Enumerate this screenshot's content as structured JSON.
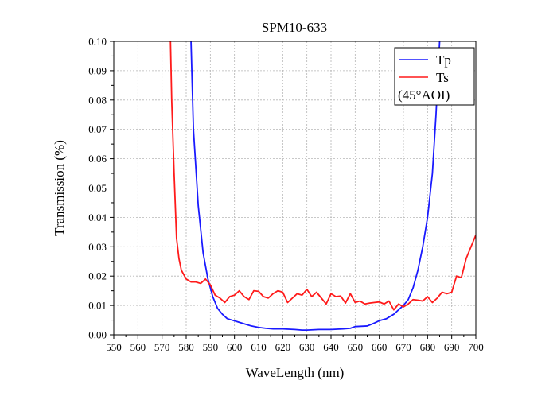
{
  "chart_data": {
    "type": "line",
    "title": "SPM10-633",
    "xlabel": "WaveLength (nm)",
    "ylabel": "Transmission (%)",
    "xlim": [
      550,
      700
    ],
    "ylim": [
      0,
      0.1
    ],
    "x_ticks": [
      550,
      560,
      570,
      580,
      590,
      600,
      610,
      620,
      630,
      640,
      650,
      660,
      670,
      680,
      690,
      700
    ],
    "y_ticks": [
      0.0,
      0.01,
      0.02,
      0.03,
      0.04,
      0.05,
      0.06,
      0.07,
      0.08,
      0.09,
      0.1
    ],
    "x_tick_labels": [
      "550",
      "560",
      "570",
      "580",
      "590",
      "600",
      "610",
      "620",
      "630",
      "640",
      "650",
      "660",
      "670",
      "680",
      "690",
      "700"
    ],
    "y_tick_labels": [
      "0.00",
      "0.01",
      "0.02",
      "0.03",
      "0.04",
      "0.05",
      "0.06",
      "0.07",
      "0.08",
      "0.09",
      "0.10"
    ],
    "grid": true,
    "legend_position": "top-right",
    "legend_note": "(45°AOI)",
    "series": [
      {
        "name": "Tp",
        "color": "#1a1aff",
        "points": [
          [
            582,
            0.1
          ],
          [
            583,
            0.07
          ],
          [
            585,
            0.044
          ],
          [
            587,
            0.028
          ],
          [
            589,
            0.019
          ],
          [
            591,
            0.013
          ],
          [
            593,
            0.009
          ],
          [
            595,
            0.007
          ],
          [
            597,
            0.0055
          ],
          [
            599,
            0.005
          ],
          [
            601,
            0.0045
          ],
          [
            603,
            0.004
          ],
          [
            605,
            0.0035
          ],
          [
            607,
            0.003
          ],
          [
            610,
            0.0025
          ],
          [
            613,
            0.0022
          ],
          [
            616,
            0.002
          ],
          [
            620,
            0.002
          ],
          [
            625,
            0.0018
          ],
          [
            628,
            0.0016
          ],
          [
            630,
            0.0016
          ],
          [
            635,
            0.0018
          ],
          [
            640,
            0.0018
          ],
          [
            645,
            0.002
          ],
          [
            648,
            0.0022
          ],
          [
            650,
            0.0028
          ],
          [
            655,
            0.003
          ],
          [
            658,
            0.004
          ],
          [
            660,
            0.0048
          ],
          [
            663,
            0.0055
          ],
          [
            666,
            0.007
          ],
          [
            668,
            0.0085
          ],
          [
            670,
            0.01
          ],
          [
            672,
            0.012
          ],
          [
            674,
            0.016
          ],
          [
            676,
            0.022
          ],
          [
            678,
            0.03
          ],
          [
            680,
            0.04
          ],
          [
            682,
            0.055
          ],
          [
            683.5,
            0.075
          ],
          [
            685,
            0.1
          ]
        ]
      },
      {
        "name": "Ts",
        "color": "#ff1a1a",
        "points": [
          [
            573.5,
            0.1
          ],
          [
            574,
            0.08
          ],
          [
            575,
            0.055
          ],
          [
            576,
            0.033
          ],
          [
            577,
            0.026
          ],
          [
            578,
            0.022
          ],
          [
            580,
            0.019
          ],
          [
            582,
            0.018
          ],
          [
            584,
            0.018
          ],
          [
            586,
            0.0175
          ],
          [
            588,
            0.019
          ],
          [
            590,
            0.017
          ],
          [
            592,
            0.0135
          ],
          [
            594,
            0.0125
          ],
          [
            596,
            0.011
          ],
          [
            598,
            0.013
          ],
          [
            600,
            0.0135
          ],
          [
            602,
            0.015
          ],
          [
            604,
            0.013
          ],
          [
            606,
            0.012
          ],
          [
            608,
            0.015
          ],
          [
            610,
            0.0148
          ],
          [
            612,
            0.013
          ],
          [
            614,
            0.0125
          ],
          [
            616,
            0.014
          ],
          [
            618,
            0.015
          ],
          [
            620,
            0.0145
          ],
          [
            622,
            0.011
          ],
          [
            624,
            0.0125
          ],
          [
            626,
            0.014
          ],
          [
            628,
            0.0135
          ],
          [
            630,
            0.0155
          ],
          [
            632,
            0.013
          ],
          [
            634,
            0.0145
          ],
          [
            636,
            0.0125
          ],
          [
            638,
            0.0105
          ],
          [
            640,
            0.014
          ],
          [
            642,
            0.013
          ],
          [
            644,
            0.0132
          ],
          [
            646,
            0.0108
          ],
          [
            648,
            0.014
          ],
          [
            650,
            0.011
          ],
          [
            652,
            0.0115
          ],
          [
            654,
            0.0105
          ],
          [
            656,
            0.0108
          ],
          [
            658,
            0.011
          ],
          [
            660,
            0.0112
          ],
          [
            662,
            0.0105
          ],
          [
            664,
            0.0115
          ],
          [
            666,
            0.0085
          ],
          [
            668,
            0.0105
          ],
          [
            670,
            0.0095
          ],
          [
            672,
            0.0105
          ],
          [
            674,
            0.012
          ],
          [
            676,
            0.0118
          ],
          [
            678,
            0.0115
          ],
          [
            680,
            0.013
          ],
          [
            682,
            0.011
          ],
          [
            684,
            0.0125
          ],
          [
            686,
            0.0145
          ],
          [
            688,
            0.014
          ],
          [
            690,
            0.0145
          ],
          [
            692,
            0.02
          ],
          [
            694,
            0.0195
          ],
          [
            696,
            0.026
          ],
          [
            698,
            0.03
          ],
          [
            700,
            0.034
          ]
        ]
      }
    ]
  }
}
